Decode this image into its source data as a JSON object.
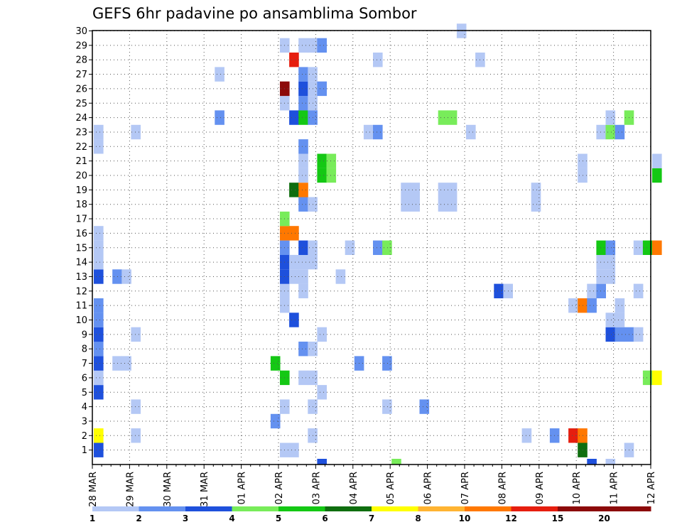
{
  "chart_data": {
    "type": "heatmap",
    "title": "GEFS 6hr padavine po ansamblima Sombor",
    "ylabels": [
      "1",
      "2",
      "3",
      "4",
      "5",
      "6",
      "7",
      "8",
      "9",
      "10",
      "11",
      "12",
      "13",
      "14",
      "15",
      "16",
      "17",
      "18",
      "19",
      "20",
      "21",
      "22",
      "23",
      "24",
      "25",
      "26",
      "27",
      "28",
      "29",
      "30"
    ],
    "xlabels": [
      "28 MAR",
      "29 MAR",
      "30 MAR",
      "31 MAR",
      "01 APR",
      "02 APR",
      "03 APR",
      "04 APR",
      "05 APR",
      "06 APR",
      "07 APR",
      "08 APR",
      "09 APR",
      "10 APR",
      "11 APR",
      "12 APR"
    ],
    "time_step_hours": 6,
    "ylim": [
      0,
      30
    ],
    "grid": true,
    "colorbar": {
      "labels": [
        "1",
        "2",
        "3",
        "4",
        "5",
        "6",
        "7",
        "8",
        "10",
        "12",
        "15",
        "20"
      ],
      "colors": [
        "#b4c8f5",
        "#6491f0",
        "#1e50dc",
        "#78ec5a",
        "#14c814",
        "#0f6e0f",
        "#ffff00",
        "#ffb432",
        "#ff7800",
        "#e61e0f",
        "#8c0a0a"
      ]
    },
    "cells": [
      {
        "row": 1,
        "step": 0,
        "v": 3
      },
      {
        "row": 1,
        "step": 20,
        "v": 1
      },
      {
        "row": 1,
        "step": 21,
        "v": 1
      },
      {
        "row": 1,
        "step": 52,
        "v": 6
      },
      {
        "row": 1,
        "step": 57,
        "v": 1
      },
      {
        "row": 2,
        "step": 0,
        "v": 7
      },
      {
        "row": 2,
        "step": 4,
        "v": 1
      },
      {
        "row": 2,
        "step": 23,
        "v": 1
      },
      {
        "row": 2,
        "step": 46,
        "v": 1
      },
      {
        "row": 2,
        "step": 49,
        "v": 2
      },
      {
        "row": 2,
        "step": 51,
        "v": 10
      },
      {
        "row": 2,
        "step": 52,
        "v": 9
      },
      {
        "row": 3,
        "step": 19,
        "v": 2
      },
      {
        "row": 4,
        "step": 4,
        "v": 1
      },
      {
        "row": 4,
        "step": 20,
        "v": 1
      },
      {
        "row": 4,
        "step": 23,
        "v": 1
      },
      {
        "row": 4,
        "step": 31,
        "v": 1
      },
      {
        "row": 4,
        "step": 35,
        "v": 2
      },
      {
        "row": 5,
        "step": 0,
        "v": 3
      },
      {
        "row": 5,
        "step": 24,
        "v": 1
      },
      {
        "row": 6,
        "step": 0,
        "v": 1
      },
      {
        "row": 6,
        "step": 20,
        "v": 5
      },
      {
        "row": 6,
        "step": 22,
        "v": 1
      },
      {
        "row": 6,
        "step": 23,
        "v": 1
      },
      {
        "row": 6,
        "step": 59,
        "v": 4
      },
      {
        "row": 6,
        "step": 60,
        "v": 7
      },
      {
        "row": 7,
        "step": 0,
        "v": 3
      },
      {
        "row": 7,
        "step": 2,
        "v": 1
      },
      {
        "row": 7,
        "step": 3,
        "v": 1
      },
      {
        "row": 7,
        "step": 19,
        "v": 5
      },
      {
        "row": 7,
        "step": 28,
        "v": 2
      },
      {
        "row": 7,
        "step": 31,
        "v": 2
      },
      {
        "row": 8,
        "step": 0,
        "v": 2
      },
      {
        "row": 8,
        "step": 22,
        "v": 2
      },
      {
        "row": 8,
        "step": 23,
        "v": 1
      },
      {
        "row": 9,
        "step": 0,
        "v": 3
      },
      {
        "row": 9,
        "step": 4,
        "v": 1
      },
      {
        "row": 9,
        "step": 24,
        "v": 1
      },
      {
        "row": 9,
        "step": 55,
        "v": 3
      },
      {
        "row": 9,
        "step": 56,
        "v": 2
      },
      {
        "row": 9,
        "step": 57,
        "v": 2
      },
      {
        "row": 9,
        "step": 58,
        "v": 1
      },
      {
        "row": 10,
        "step": 0,
        "v": 2
      },
      {
        "row": 10,
        "step": 21,
        "v": 3
      },
      {
        "row": 10,
        "step": 55,
        "v": 1
      },
      {
        "row": 10,
        "step": 56,
        "v": 1
      },
      {
        "row": 11,
        "step": 0,
        "v": 2
      },
      {
        "row": 11,
        "step": 20,
        "v": 1
      },
      {
        "row": 11,
        "step": 51,
        "v": 1
      },
      {
        "row": 11,
        "step": 52,
        "v": 9
      },
      {
        "row": 11,
        "step": 53,
        "v": 2
      },
      {
        "row": 11,
        "step": 56,
        "v": 1
      },
      {
        "row": 12,
        "step": 20,
        "v": 1
      },
      {
        "row": 12,
        "step": 22,
        "v": 1
      },
      {
        "row": 12,
        "step": 43,
        "v": 3
      },
      {
        "row": 12,
        "step": 44,
        "v": 1
      },
      {
        "row": 12,
        "step": 53,
        "v": 1
      },
      {
        "row": 12,
        "step": 54,
        "v": 2
      },
      {
        "row": 12,
        "step": 58,
        "v": 1
      },
      {
        "row": 13,
        "step": 0,
        "v": 3
      },
      {
        "row": 13,
        "step": 2,
        "v": 2
      },
      {
        "row": 13,
        "step": 3,
        "v": 1
      },
      {
        "row": 13,
        "step": 20,
        "v": 3
      },
      {
        "row": 13,
        "step": 21,
        "v": 1
      },
      {
        "row": 13,
        "step": 22,
        "v": 1
      },
      {
        "row": 13,
        "step": 26,
        "v": 1
      },
      {
        "row": 13,
        "step": 54,
        "v": 1
      },
      {
        "row": 13,
        "step": 55,
        "v": 1
      },
      {
        "row": 14,
        "step": 0,
        "v": 1
      },
      {
        "row": 14,
        "step": 20,
        "v": 3
      },
      {
        "row": 14,
        "step": 21,
        "v": 1
      },
      {
        "row": 14,
        "step": 22,
        "v": 1
      },
      {
        "row": 14,
        "step": 23,
        "v": 1
      },
      {
        "row": 14,
        "step": 54,
        "v": 1
      },
      {
        "row": 14,
        "step": 55,
        "v": 1
      },
      {
        "row": 15,
        "step": 0,
        "v": 1
      },
      {
        "row": 15,
        "step": 20,
        "v": 2
      },
      {
        "row": 15,
        "step": 22,
        "v": 3
      },
      {
        "row": 15,
        "step": 23,
        "v": 1
      },
      {
        "row": 15,
        "step": 27,
        "v": 1
      },
      {
        "row": 15,
        "step": 30,
        "v": 2
      },
      {
        "row": 15,
        "step": 31,
        "v": 4
      },
      {
        "row": 15,
        "step": 54,
        "v": 5
      },
      {
        "row": 15,
        "step": 55,
        "v": 2
      },
      {
        "row": 15,
        "step": 58,
        "v": 1
      },
      {
        "row": 15,
        "step": 59,
        "v": 5
      },
      {
        "row": 15,
        "step": 60,
        "v": 9
      },
      {
        "row": 16,
        "step": 0,
        "v": 1
      },
      {
        "row": 16,
        "step": 20,
        "v": 9
      },
      {
        "row": 16,
        "step": 21,
        "v": 9
      },
      {
        "row": 17,
        "step": 20,
        "v": 4
      },
      {
        "row": 18,
        "step": 22,
        "v": 2
      },
      {
        "row": 18,
        "step": 23,
        "v": 1
      },
      {
        "row": 18,
        "step": 33,
        "v": 1
      },
      {
        "row": 18,
        "step": 34,
        "v": 1
      },
      {
        "row": 18,
        "step": 37,
        "v": 1
      },
      {
        "row": 18,
        "step": 38,
        "v": 1
      },
      {
        "row": 18,
        "step": 47,
        "v": 1
      },
      {
        "row": 19,
        "step": 21,
        "v": 6
      },
      {
        "row": 19,
        "step": 22,
        "v": 9
      },
      {
        "row": 19,
        "step": 33,
        "v": 1
      },
      {
        "row": 19,
        "step": 34,
        "v": 1
      },
      {
        "row": 19,
        "step": 37,
        "v": 1
      },
      {
        "row": 19,
        "step": 38,
        "v": 1
      },
      {
        "row": 19,
        "step": 47,
        "v": 1
      },
      {
        "row": 20,
        "step": 22,
        "v": 1
      },
      {
        "row": 20,
        "step": 24,
        "v": 5
      },
      {
        "row": 20,
        "step": 25,
        "v": 4
      },
      {
        "row": 20,
        "step": 52,
        "v": 1
      },
      {
        "row": 20,
        "step": 60,
        "v": 5
      },
      {
        "row": 21,
        "step": 22,
        "v": 1
      },
      {
        "row": 21,
        "step": 24,
        "v": 5
      },
      {
        "row": 21,
        "step": 25,
        "v": 4
      },
      {
        "row": 21,
        "step": 52,
        "v": 1
      },
      {
        "row": 21,
        "step": 60,
        "v": 1
      },
      {
        "row": 22,
        "step": 0,
        "v": 1
      },
      {
        "row": 22,
        "step": 22,
        "v": 2
      },
      {
        "row": 23,
        "step": 0,
        "v": 1
      },
      {
        "row": 23,
        "step": 4,
        "v": 1
      },
      {
        "row": 23,
        "step": 29,
        "v": 1
      },
      {
        "row": 23,
        "step": 30,
        "v": 2
      },
      {
        "row": 23,
        "step": 40,
        "v": 1
      },
      {
        "row": 23,
        "step": 54,
        "v": 1
      },
      {
        "row": 23,
        "step": 55,
        "v": 4
      },
      {
        "row": 23,
        "step": 56,
        "v": 2
      },
      {
        "row": 24,
        "step": 13,
        "v": 2
      },
      {
        "row": 24,
        "step": 21,
        "v": 3
      },
      {
        "row": 24,
        "step": 22,
        "v": 5
      },
      {
        "row": 24,
        "step": 23,
        "v": 2
      },
      {
        "row": 24,
        "step": 37,
        "v": 4
      },
      {
        "row": 24,
        "step": 38,
        "v": 4
      },
      {
        "row": 24,
        "step": 55,
        "v": 1
      },
      {
        "row": 24,
        "step": 57,
        "v": 4
      },
      {
        "row": 25,
        "step": 20,
        "v": 1
      },
      {
        "row": 25,
        "step": 22,
        "v": 2
      },
      {
        "row": 25,
        "step": 23,
        "v": 1
      },
      {
        "row": 26,
        "step": 20,
        "v": 11
      },
      {
        "row": 26,
        "step": 22,
        "v": 3
      },
      {
        "row": 26,
        "step": 23,
        "v": 1
      },
      {
        "row": 26,
        "step": 24,
        "v": 2
      },
      {
        "row": 27,
        "step": 13,
        "v": 1
      },
      {
        "row": 27,
        "step": 22,
        "v": 2
      },
      {
        "row": 27,
        "step": 23,
        "v": 1
      },
      {
        "row": 28,
        "step": 21,
        "v": 10
      },
      {
        "row": 28,
        "step": 30,
        "v": 1
      },
      {
        "row": 28,
        "step": 41,
        "v": 1
      },
      {
        "row": 29,
        "step": 20,
        "v": 1
      },
      {
        "row": 29,
        "step": 22,
        "v": 1
      },
      {
        "row": 29,
        "step": 23,
        "v": 1
      },
      {
        "row": 29,
        "step": 24,
        "v": 2
      },
      {
        "row": 30,
        "step": 39,
        "v": 1
      },
      {
        "row": 0,
        "step": 24,
        "v": 3
      },
      {
        "row": 0,
        "step": 32,
        "v": 4
      },
      {
        "row": 0,
        "step": 53,
        "v": 3
      },
      {
        "row": 0,
        "step": 55,
        "v": 1
      }
    ]
  }
}
